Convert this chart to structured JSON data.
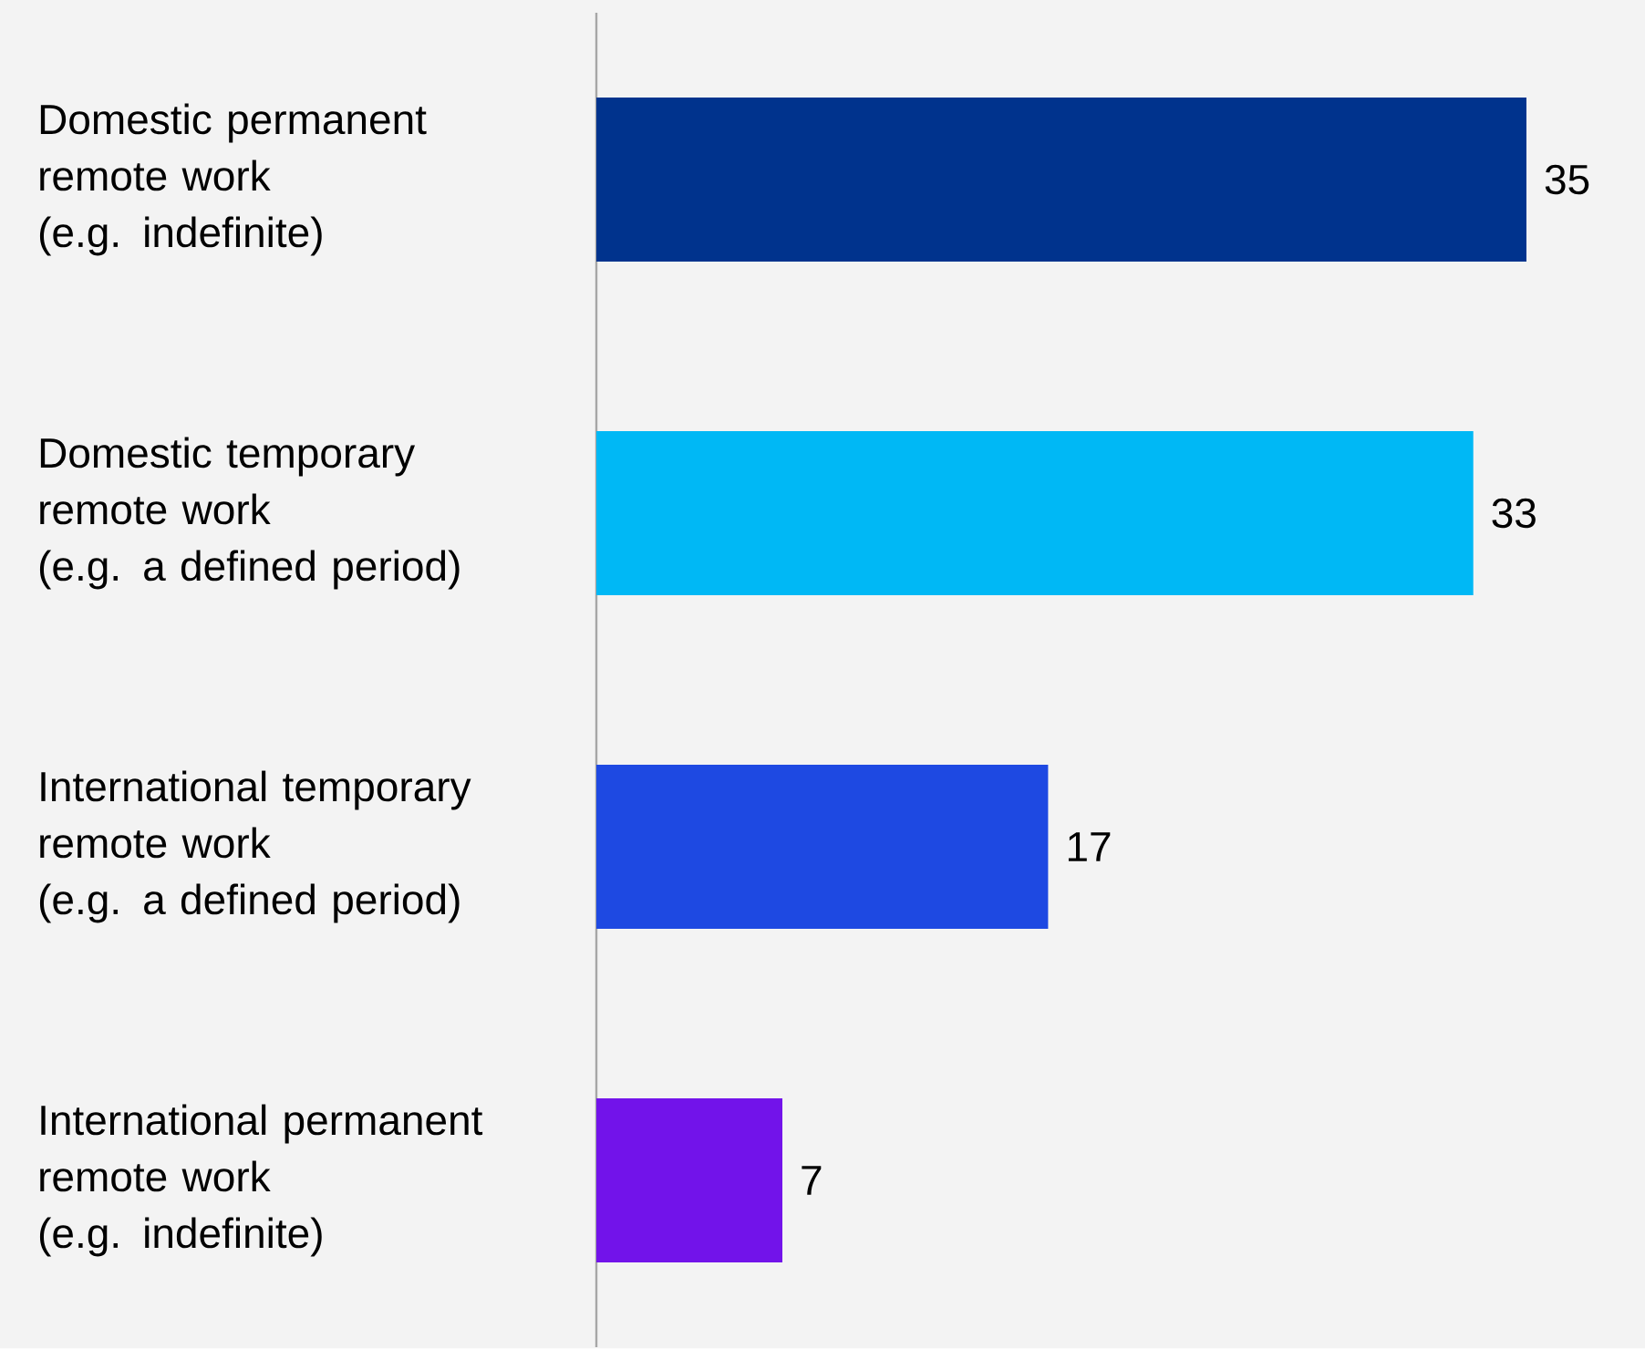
{
  "chart_data": {
    "type": "bar",
    "orientation": "horizontal",
    "categories": [
      "Domestic permanent\nremote work\n(e.g. indefinite)",
      "Domestic temporary\nremote work\n(e.g. a defined period)",
      "International temporary\nremote work\n(e.g. a defined period)",
      "International permanent\nremote work\n(e.g. indefinite)"
    ],
    "values": [
      35,
      33,
      17,
      7
    ],
    "colors": [
      "#00338d",
      "#00b8f5",
      "#1e49e2",
      "#7213ea"
    ],
    "data_labels": true
  }
}
